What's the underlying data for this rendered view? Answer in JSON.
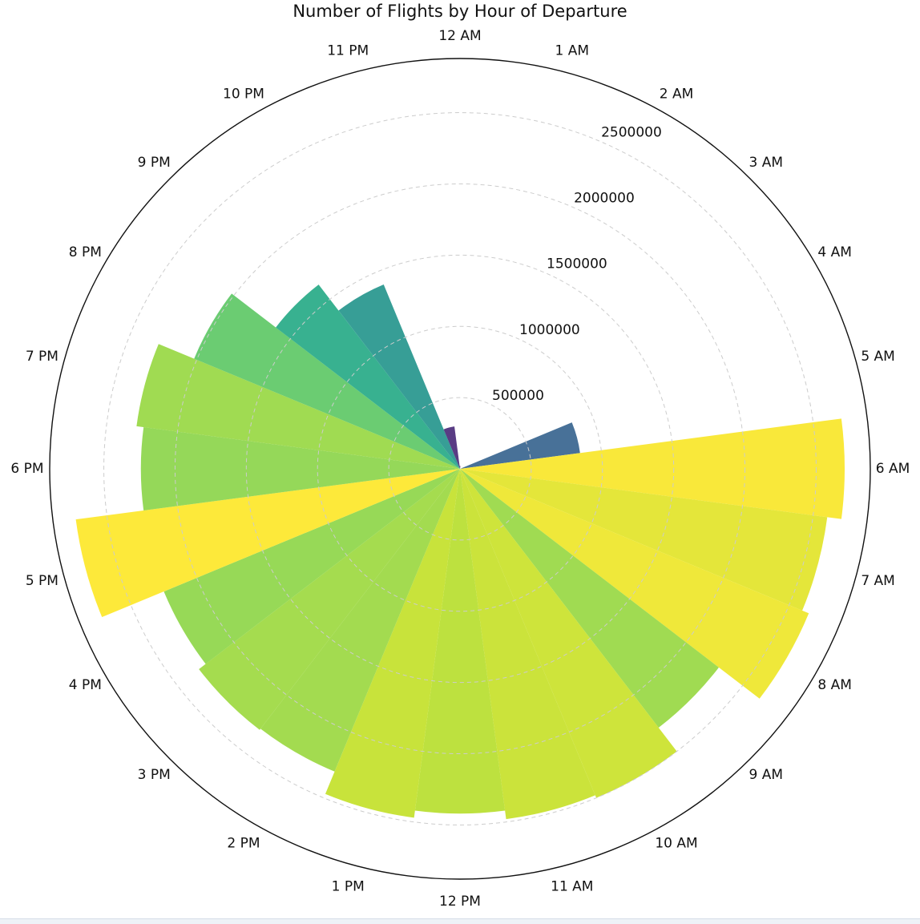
{
  "chart_data": {
    "type": "bar",
    "projection": "polar",
    "title": "Number of Flights by Hour of Departure",
    "direction": "clockwise",
    "zero_location": "top",
    "categories": [
      "12 AM",
      "1 AM",
      "2 AM",
      "3 AM",
      "4 AM",
      "5 AM",
      "6 AM",
      "7 AM",
      "8 AM",
      "9 AM",
      "10 AM",
      "11 AM",
      "12 PM",
      "1 PM",
      "2 PM",
      "3 PM",
      "4 PM",
      "5 PM",
      "6 PM",
      "7 PM",
      "8 PM",
      "9 PM",
      "10 PM",
      "11 PM"
    ],
    "values": [
      20000,
      500,
      500,
      500,
      1000,
      850000,
      2700000,
      2600000,
      2650000,
      2290000,
      2500000,
      2480000,
      2420000,
      2470000,
      2300000,
      2310000,
      2250000,
      2720000,
      2240000,
      2290000,
      2020000,
      1630000,
      1400000,
      300000
    ],
    "r_ticks": [
      500000,
      1000000,
      1500000,
      2000000,
      2500000
    ],
    "r_tick_labels": [
      "500000",
      "1000000",
      "1500000",
      "2000000",
      "2500000"
    ],
    "rlim": [
      0,
      2880000
    ],
    "grid": true,
    "colormap": "viridis"
  },
  "colors": {
    "outer_ring": "#111111",
    "grid": "#cccccc"
  }
}
